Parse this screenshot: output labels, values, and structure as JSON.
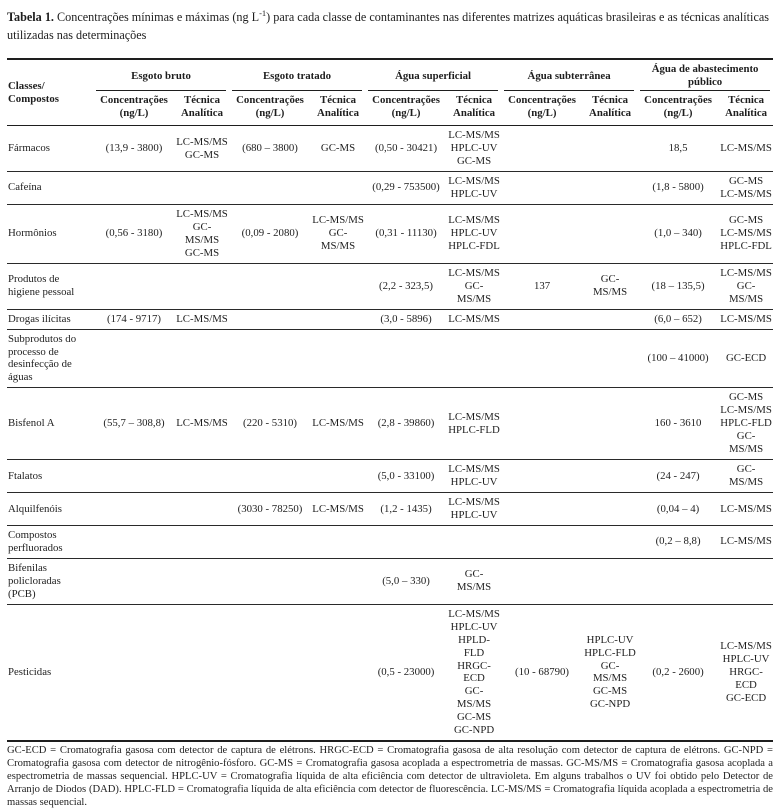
{
  "caption": {
    "label": "Tabela 1.",
    "text_before_sup": " Concentrações mínimas e máximas (ng L",
    "sup": "-1",
    "text_after_sup": ") para cada classe de contaminantes nas diferentes matrizes aquáticas brasileiras e as técnicas analíticas utilizadas nas determinações"
  },
  "header": {
    "classes_label": "Classes/\nCompostos",
    "groups": [
      "Esgoto bruto",
      "Esgoto tratado",
      "Água superficial",
      "Água subterrânea",
      "Água de abastecimento público"
    ],
    "conc_label": "Concentrações\n(ng/L)",
    "tech_label": "Técnica\nAnalítica"
  },
  "rows": [
    {
      "label": "Fármacos",
      "cells": [
        {
          "conc": "(13,9 - 3800)",
          "tech": "LC-MS/MS\nGC-MS"
        },
        {
          "conc": "(680 – 3800)",
          "tech": "GC-MS"
        },
        {
          "conc": "(0,50 - 30421)",
          "tech": "LC-MS/MS\nHPLC-UV\nGC-MS"
        },
        {
          "conc": "",
          "tech": ""
        },
        {
          "conc": "18,5",
          "tech": "LC-MS/MS"
        }
      ]
    },
    {
      "label": "Cafeína",
      "cells": [
        {
          "conc": "",
          "tech": ""
        },
        {
          "conc": "",
          "tech": ""
        },
        {
          "conc": "(0,29 - 753500)",
          "tech": "LC-MS/MS\nHPLC-UV"
        },
        {
          "conc": "",
          "tech": ""
        },
        {
          "conc": "(1,8 - 5800)",
          "tech": "GC-MS\nLC-MS/MS"
        }
      ]
    },
    {
      "label": "Hormônios",
      "cells": [
        {
          "conc": "(0,56 - 3180)",
          "tech": "LC-MS/MS\nGC-MS/MS\nGC-MS"
        },
        {
          "conc": "(0,09 - 2080)",
          "tech": "LC-MS/MS\nGC-MS/MS"
        },
        {
          "conc": "(0,31 - 11130)",
          "tech": "LC-MS/MS\nHPLC-UV\nHPLC-FDL"
        },
        {
          "conc": "",
          "tech": ""
        },
        {
          "conc": "(1,0 – 340)",
          "tech": "GC-MS\nLC-MS/MS\nHPLC-FDL"
        }
      ]
    },
    {
      "label": "Produtos de higiene pessoal",
      "cells": [
        {
          "conc": "",
          "tech": ""
        },
        {
          "conc": "",
          "tech": ""
        },
        {
          "conc": "(2,2 - 323,5)",
          "tech": "LC-MS/MS\nGC-MS/MS"
        },
        {
          "conc": "137",
          "tech": "GC-MS/MS"
        },
        {
          "conc": "(18 – 135,5)",
          "tech": "LC-MS/MS\nGC-MS/MS"
        }
      ]
    },
    {
      "label": "Drogas ilícitas",
      "cells": [
        {
          "conc": "(174 - 9717)",
          "tech": "LC-MS/MS"
        },
        {
          "conc": "",
          "tech": ""
        },
        {
          "conc": "(3,0 - 5896)",
          "tech": "LC-MS/MS"
        },
        {
          "conc": "",
          "tech": ""
        },
        {
          "conc": "(6,0 – 652)",
          "tech": "LC-MS/MS"
        }
      ]
    },
    {
      "label": "Subprodutos do processo de desinfecção de águas",
      "cells": [
        {
          "conc": "",
          "tech": ""
        },
        {
          "conc": "",
          "tech": ""
        },
        {
          "conc": "",
          "tech": ""
        },
        {
          "conc": "",
          "tech": ""
        },
        {
          "conc": "(100 – 41000)",
          "tech": "GC-ECD"
        }
      ]
    },
    {
      "label": "Bisfenol A",
      "cells": [
        {
          "conc": "(55,7 – 308,8)",
          "tech": "LC-MS/MS"
        },
        {
          "conc": "(220 - 5310)",
          "tech": "LC-MS/MS"
        },
        {
          "conc": "(2,8 - 39860)",
          "tech": "LC-MS/MS\nHPLC-FLD"
        },
        {
          "conc": "",
          "tech": ""
        },
        {
          "conc": "160 - 3610",
          "tech": "GC-MS\nLC-MS/MS\nHPLC-FLD\nGC-MS/MS"
        }
      ]
    },
    {
      "label": "Ftalatos",
      "cells": [
        {
          "conc": "",
          "tech": ""
        },
        {
          "conc": "",
          "tech": ""
        },
        {
          "conc": "(5,0 - 33100)",
          "tech": "LC-MS/MS\nHPLC-UV"
        },
        {
          "conc": "",
          "tech": ""
        },
        {
          "conc": "(24 - 247)",
          "tech": "GC-MS/MS"
        }
      ]
    },
    {
      "label": "Alquilfenóis",
      "cells": [
        {
          "conc": "",
          "tech": ""
        },
        {
          "conc": "(3030 - 78250)",
          "tech": "LC-MS/MS"
        },
        {
          "conc": "(1,2 - 1435)",
          "tech": "LC-MS/MS\nHPLC-UV"
        },
        {
          "conc": "",
          "tech": ""
        },
        {
          "conc": "(0,04 – 4)",
          "tech": "LC-MS/MS"
        }
      ]
    },
    {
      "label": "Compostos perfluorados",
      "cells": [
        {
          "conc": "",
          "tech": ""
        },
        {
          "conc": "",
          "tech": ""
        },
        {
          "conc": "",
          "tech": ""
        },
        {
          "conc": "",
          "tech": ""
        },
        {
          "conc": "(0,2 – 8,8)",
          "tech": "LC-MS/MS"
        }
      ]
    },
    {
      "label": "Bifenilas policloradas (PCB)",
      "cells": [
        {
          "conc": "",
          "tech": ""
        },
        {
          "conc": "",
          "tech": ""
        },
        {
          "conc": "(5,0 – 330)",
          "tech": "GC-MS/MS"
        },
        {
          "conc": "",
          "tech": ""
        },
        {
          "conc": "",
          "tech": ""
        }
      ]
    },
    {
      "label": "Pesticidas",
      "cells": [
        {
          "conc": "",
          "tech": ""
        },
        {
          "conc": "",
          "tech": ""
        },
        {
          "conc": "(0,5 - 23000)",
          "tech": "LC-MS/MS\nHPLC-UV\nHPLD-FLD\nHRGC-ECD\nGC-MS/MS\nGC-MS\nGC-NPD"
        },
        {
          "conc": "(10 - 68790)",
          "tech": "HPLC-UV\nHPLC-FLD\nGC-MS/MS\nGC-MS\nGC-NPD"
        },
        {
          "conc": "(0,2 - 2600)",
          "tech": "LC-MS/MS\nHPLC-UV\nHRGC-ECD\nGC-ECD"
        }
      ]
    }
  ],
  "footnote": "GC-ECD = Cromatografia gasosa com detector de captura de elétrons. HRGC-ECD = Cromatografia gasosa de alta resolução com detector de captura de elétrons. GC-NPD = Cromatografia gasosa com detector de nitrogênio-fósforo. GC-MS = Cromatografia gasosa acoplada a espectrometria de massas. GC-MS/MS = Cromatografia gasosa acoplada a espectrometria de massas sequencial. HPLC-UV = Cromatografia líquida de alta eficiência com detector de ultravioleta. Em alguns trabalhos o UV foi obtido pelo Detector de Arranjo de Diodos (DAD). HPLC-FLD = Cromatografia líquida de alta eficiência com detector de fluorescência. LC-MS/MS = Cromatografia líquida acoplada a espectrometria de massas sequencial."
}
